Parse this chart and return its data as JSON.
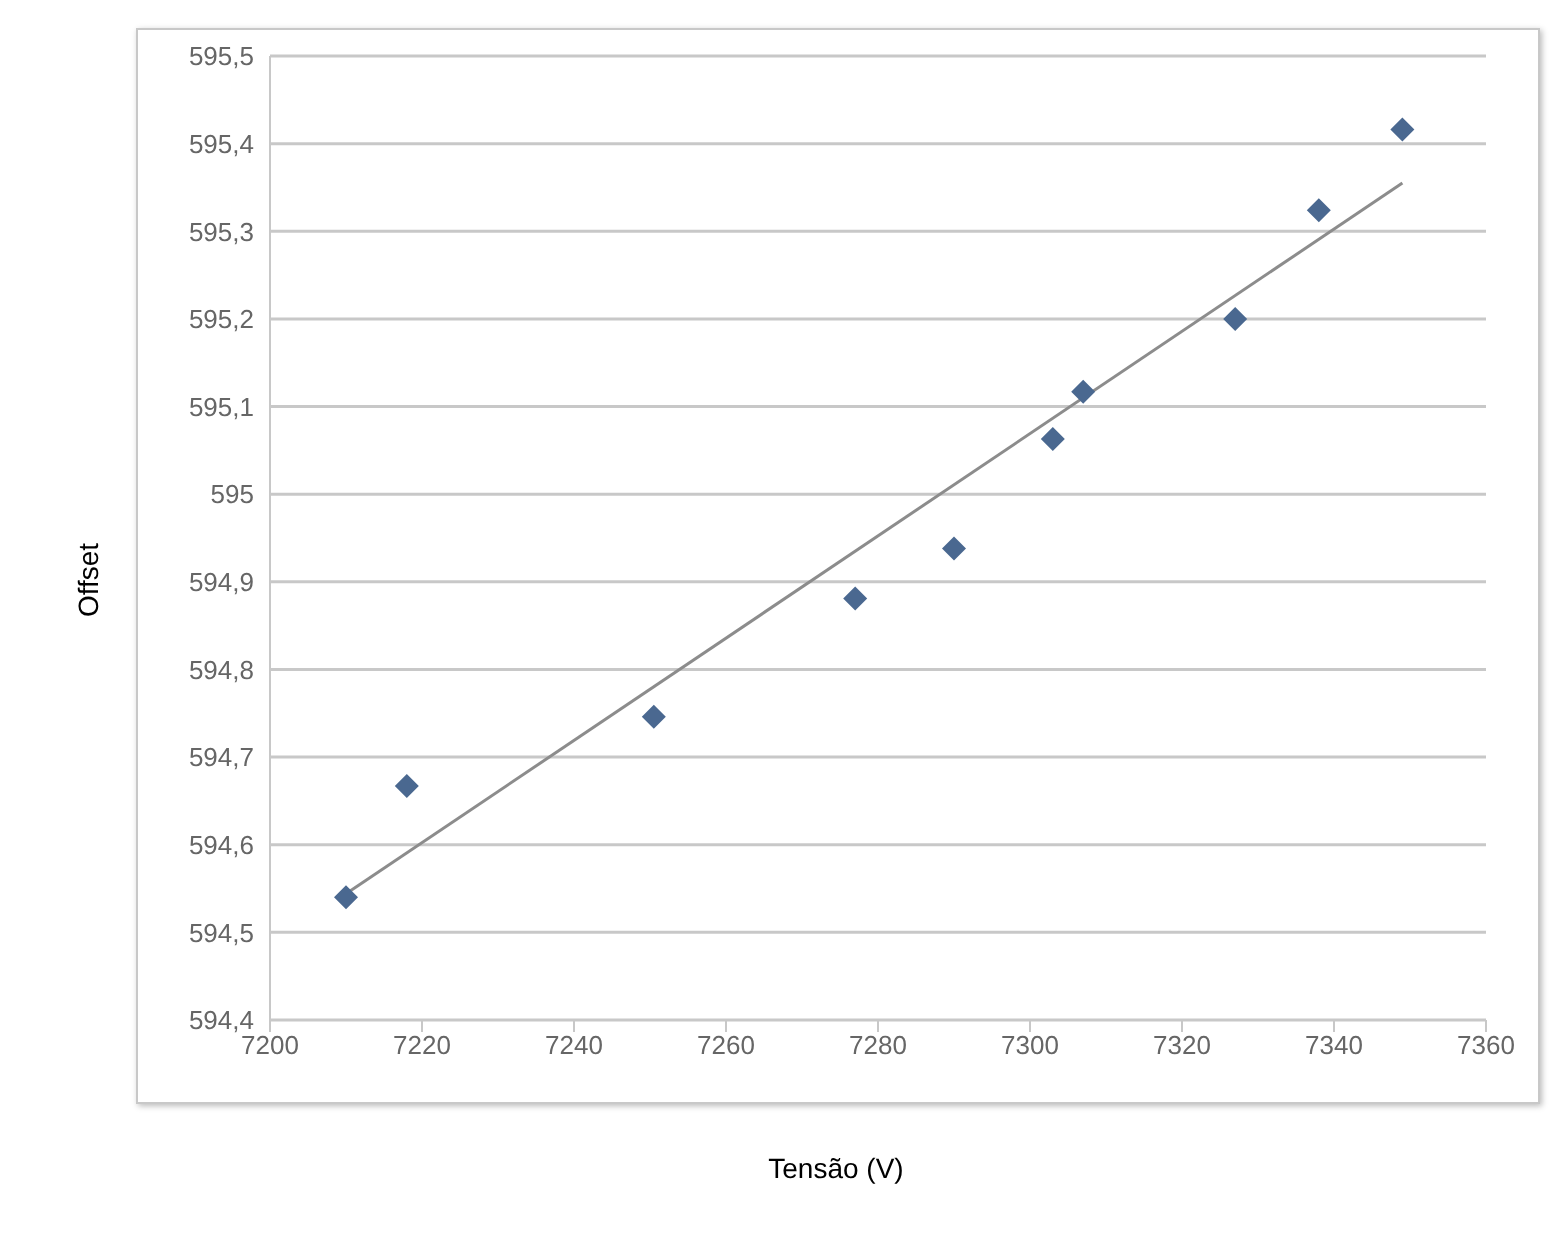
{
  "chart_data": {
    "type": "scatter",
    "xlabel": "Tensão (V)",
    "ylabel": "Offset",
    "xlim": [
      7200,
      7360
    ],
    "xticks": [
      7200,
      7220,
      7240,
      7260,
      7280,
      7300,
      7320,
      7340,
      7360
    ],
    "ylim": [
      594.4,
      595.5
    ],
    "yticks": [
      {
        "value": 594.4,
        "label": "594,4"
      },
      {
        "value": 594.5,
        "label": "594,5"
      },
      {
        "value": 594.6,
        "label": "594,6"
      },
      {
        "value": 594.7,
        "label": "594,7"
      },
      {
        "value": 594.8,
        "label": "594,8"
      },
      {
        "value": 594.9,
        "label": "594,9"
      },
      {
        "value": 595,
        "label": "595"
      },
      {
        "value": 595.1,
        "label": "595,1"
      },
      {
        "value": 595.2,
        "label": "595,2"
      },
      {
        "value": 595.3,
        "label": "595,3"
      },
      {
        "value": 595.4,
        "label": "595,4"
      },
      {
        "value": 595.5,
        "label": "595,5"
      }
    ],
    "grid": "y",
    "marker": "diamond",
    "series": [
      {
        "color": "#4a6890",
        "x": [
          7210,
          7218,
          7250.5,
          7277,
          7290,
          7303,
          7307,
          7327,
          7338,
          7349
        ],
        "values": [
          594.54,
          594.667,
          594.746,
          594.881,
          594.938,
          595.063,
          595.117,
          595.2,
          595.324,
          595.416
        ]
      },
      {
        "type": "line",
        "color": "#8c8c8c",
        "marker": "none",
        "x": [
          7210,
          7349
        ],
        "values": [
          594.544,
          595.355
        ]
      }
    ]
  }
}
